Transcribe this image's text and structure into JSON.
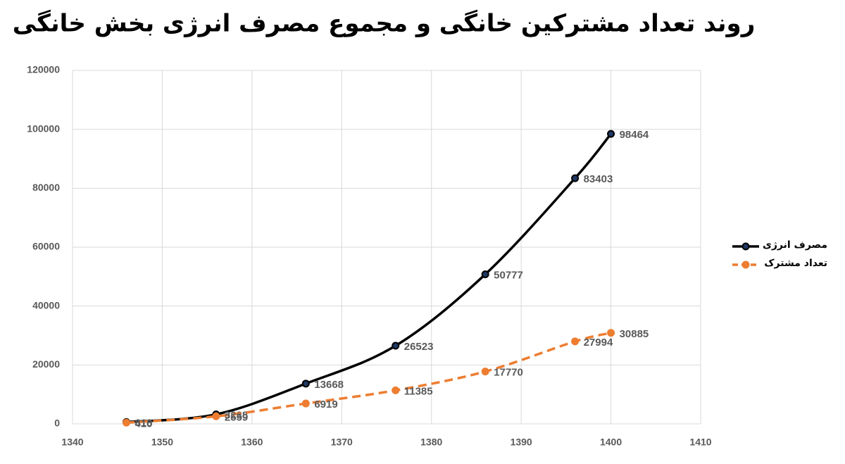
{
  "chart_data": {
    "type": "line",
    "title": "روند تعداد مشترکین خانگی و مجموع مصرف انرژی بخش خانگی",
    "x": [
      1346,
      1356,
      1366,
      1376,
      1386,
      1396,
      1400
    ],
    "series": [
      {
        "name": "مصرف انرژی",
        "color": "#000000",
        "marker_color": "#1f3864",
        "dashed": false,
        "values": [
          618,
          3238,
          13668,
          26523,
          50777,
          83403,
          98464
        ]
      },
      {
        "name": "تعداد مشترک",
        "color": "#ed7d31",
        "marker_color": "#ed7d31",
        "dashed": true,
        "values": [
          410,
          2559,
          6919,
          11385,
          17770,
          27994,
          30885
        ]
      }
    ],
    "xlim": [
      1340,
      1410
    ],
    "xticks": [
      1340,
      1350,
      1360,
      1370,
      1380,
      1390,
      1400,
      1410
    ],
    "ylim": [
      0,
      120000
    ],
    "yticks": [
      0,
      20000,
      40000,
      60000,
      80000,
      100000,
      120000
    ],
    "grid": true,
    "legend": "right"
  }
}
